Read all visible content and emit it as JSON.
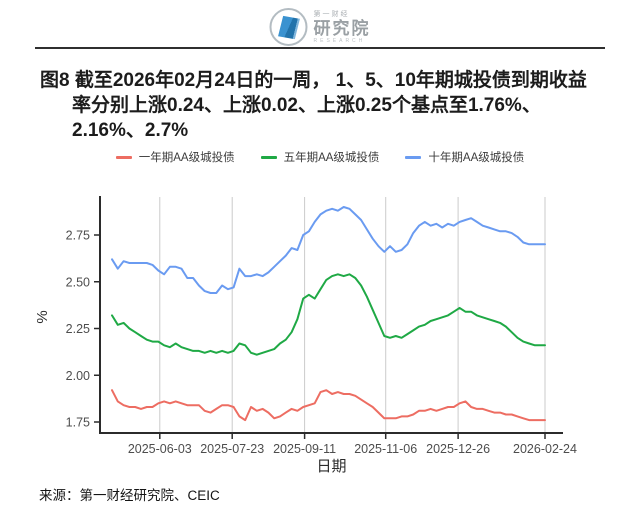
{
  "header": {
    "logo": {
      "brand_small": "第一财经",
      "brand_large": "研究院",
      "brand_sub": "RESEARCH"
    }
  },
  "title": {
    "lines": [
      "图8  截至2026年02月24日的一周， 1、5、10年期城投债到期收益",
      "率分别上涨0.24、上涨0.02、上涨0.25个基点至1.76%、",
      "2.16%、2.7%"
    ]
  },
  "source": "来源：第一财经研究院、CEIC",
  "chart_data": {
    "type": "line",
    "title": "",
    "xlabel": "日期",
    "ylabel": "%",
    "grid": "vertical-only",
    "legend_position": "top",
    "ylim": [
      1.69,
      2.95
    ],
    "ytick_values": [
      1.75,
      2.0,
      2.25,
      2.5,
      2.75
    ],
    "ytick_labels": [
      "1.75",
      "2.00",
      "2.25",
      "2.50",
      "2.75"
    ],
    "xtick_labels": [
      "2025-06-03",
      "2025-07-23",
      "2025-09-11",
      "2025-11-06",
      "2025-12-26",
      "2026-02-24"
    ],
    "xtick_days": [
      33,
      83,
      133,
      189,
      239,
      299
    ],
    "x_days": [
      0,
      4,
      8,
      12,
      16,
      20,
      24,
      28,
      32,
      36,
      40,
      44,
      48,
      52,
      56,
      60,
      64,
      68,
      72,
      76,
      80,
      84,
      88,
      92,
      96,
      100,
      104,
      108,
      112,
      116,
      120,
      124,
      128,
      132,
      136,
      140,
      144,
      148,
      152,
      156,
      160,
      164,
      168,
      172,
      176,
      180,
      184,
      188,
      192,
      196,
      200,
      204,
      208,
      212,
      216,
      220,
      224,
      228,
      232,
      236,
      240,
      244,
      248,
      252,
      256,
      260,
      264,
      268,
      272,
      276,
      280,
      284,
      288,
      292,
      296,
      299
    ],
    "series": [
      {
        "name": "一年期AA级城投债",
        "color": "#ED6D62",
        "values": [
          1.92,
          1.86,
          1.84,
          1.83,
          1.83,
          1.82,
          1.83,
          1.83,
          1.85,
          1.86,
          1.85,
          1.86,
          1.85,
          1.84,
          1.84,
          1.84,
          1.81,
          1.8,
          1.82,
          1.84,
          1.84,
          1.83,
          1.78,
          1.76,
          1.83,
          1.81,
          1.82,
          1.8,
          1.77,
          1.78,
          1.8,
          1.82,
          1.81,
          1.83,
          1.84,
          1.85,
          1.91,
          1.92,
          1.9,
          1.91,
          1.9,
          1.9,
          1.89,
          1.87,
          1.85,
          1.83,
          1.8,
          1.77,
          1.77,
          1.77,
          1.78,
          1.78,
          1.79,
          1.81,
          1.81,
          1.82,
          1.81,
          1.82,
          1.83,
          1.83,
          1.85,
          1.86,
          1.83,
          1.82,
          1.82,
          1.81,
          1.8,
          1.8,
          1.79,
          1.79,
          1.78,
          1.77,
          1.76,
          1.76,
          1.76,
          1.76
        ]
      },
      {
        "name": "五年期AA级城投债",
        "color": "#1FA945",
        "values": [
          2.32,
          2.27,
          2.28,
          2.25,
          2.23,
          2.21,
          2.19,
          2.18,
          2.18,
          2.16,
          2.15,
          2.17,
          2.15,
          2.14,
          2.13,
          2.13,
          2.12,
          2.13,
          2.12,
          2.13,
          2.12,
          2.13,
          2.17,
          2.16,
          2.12,
          2.11,
          2.12,
          2.13,
          2.14,
          2.17,
          2.19,
          2.23,
          2.3,
          2.41,
          2.43,
          2.41,
          2.46,
          2.51,
          2.53,
          2.54,
          2.53,
          2.54,
          2.52,
          2.48,
          2.42,
          2.35,
          2.28,
          2.21,
          2.2,
          2.21,
          2.2,
          2.22,
          2.24,
          2.26,
          2.27,
          2.29,
          2.3,
          2.31,
          2.32,
          2.34,
          2.36,
          2.34,
          2.34,
          2.32,
          2.31,
          2.3,
          2.29,
          2.28,
          2.26,
          2.23,
          2.2,
          2.18,
          2.17,
          2.16,
          2.16,
          2.16
        ]
      },
      {
        "name": "十年期AA级城投债",
        "color": "#6A9BF1",
        "values": [
          2.62,
          2.57,
          2.61,
          2.6,
          2.6,
          2.6,
          2.6,
          2.59,
          2.56,
          2.54,
          2.58,
          2.58,
          2.57,
          2.52,
          2.52,
          2.48,
          2.45,
          2.44,
          2.44,
          2.48,
          2.46,
          2.47,
          2.57,
          2.53,
          2.53,
          2.54,
          2.53,
          2.55,
          2.58,
          2.61,
          2.64,
          2.68,
          2.67,
          2.75,
          2.77,
          2.82,
          2.86,
          2.88,
          2.89,
          2.88,
          2.9,
          2.89,
          2.86,
          2.83,
          2.78,
          2.73,
          2.69,
          2.66,
          2.69,
          2.66,
          2.67,
          2.7,
          2.76,
          2.8,
          2.82,
          2.8,
          2.81,
          2.79,
          2.81,
          2.8,
          2.82,
          2.83,
          2.84,
          2.82,
          2.8,
          2.79,
          2.78,
          2.77,
          2.77,
          2.76,
          2.74,
          2.71,
          2.7,
          2.7,
          2.7,
          2.7
        ]
      }
    ]
  }
}
